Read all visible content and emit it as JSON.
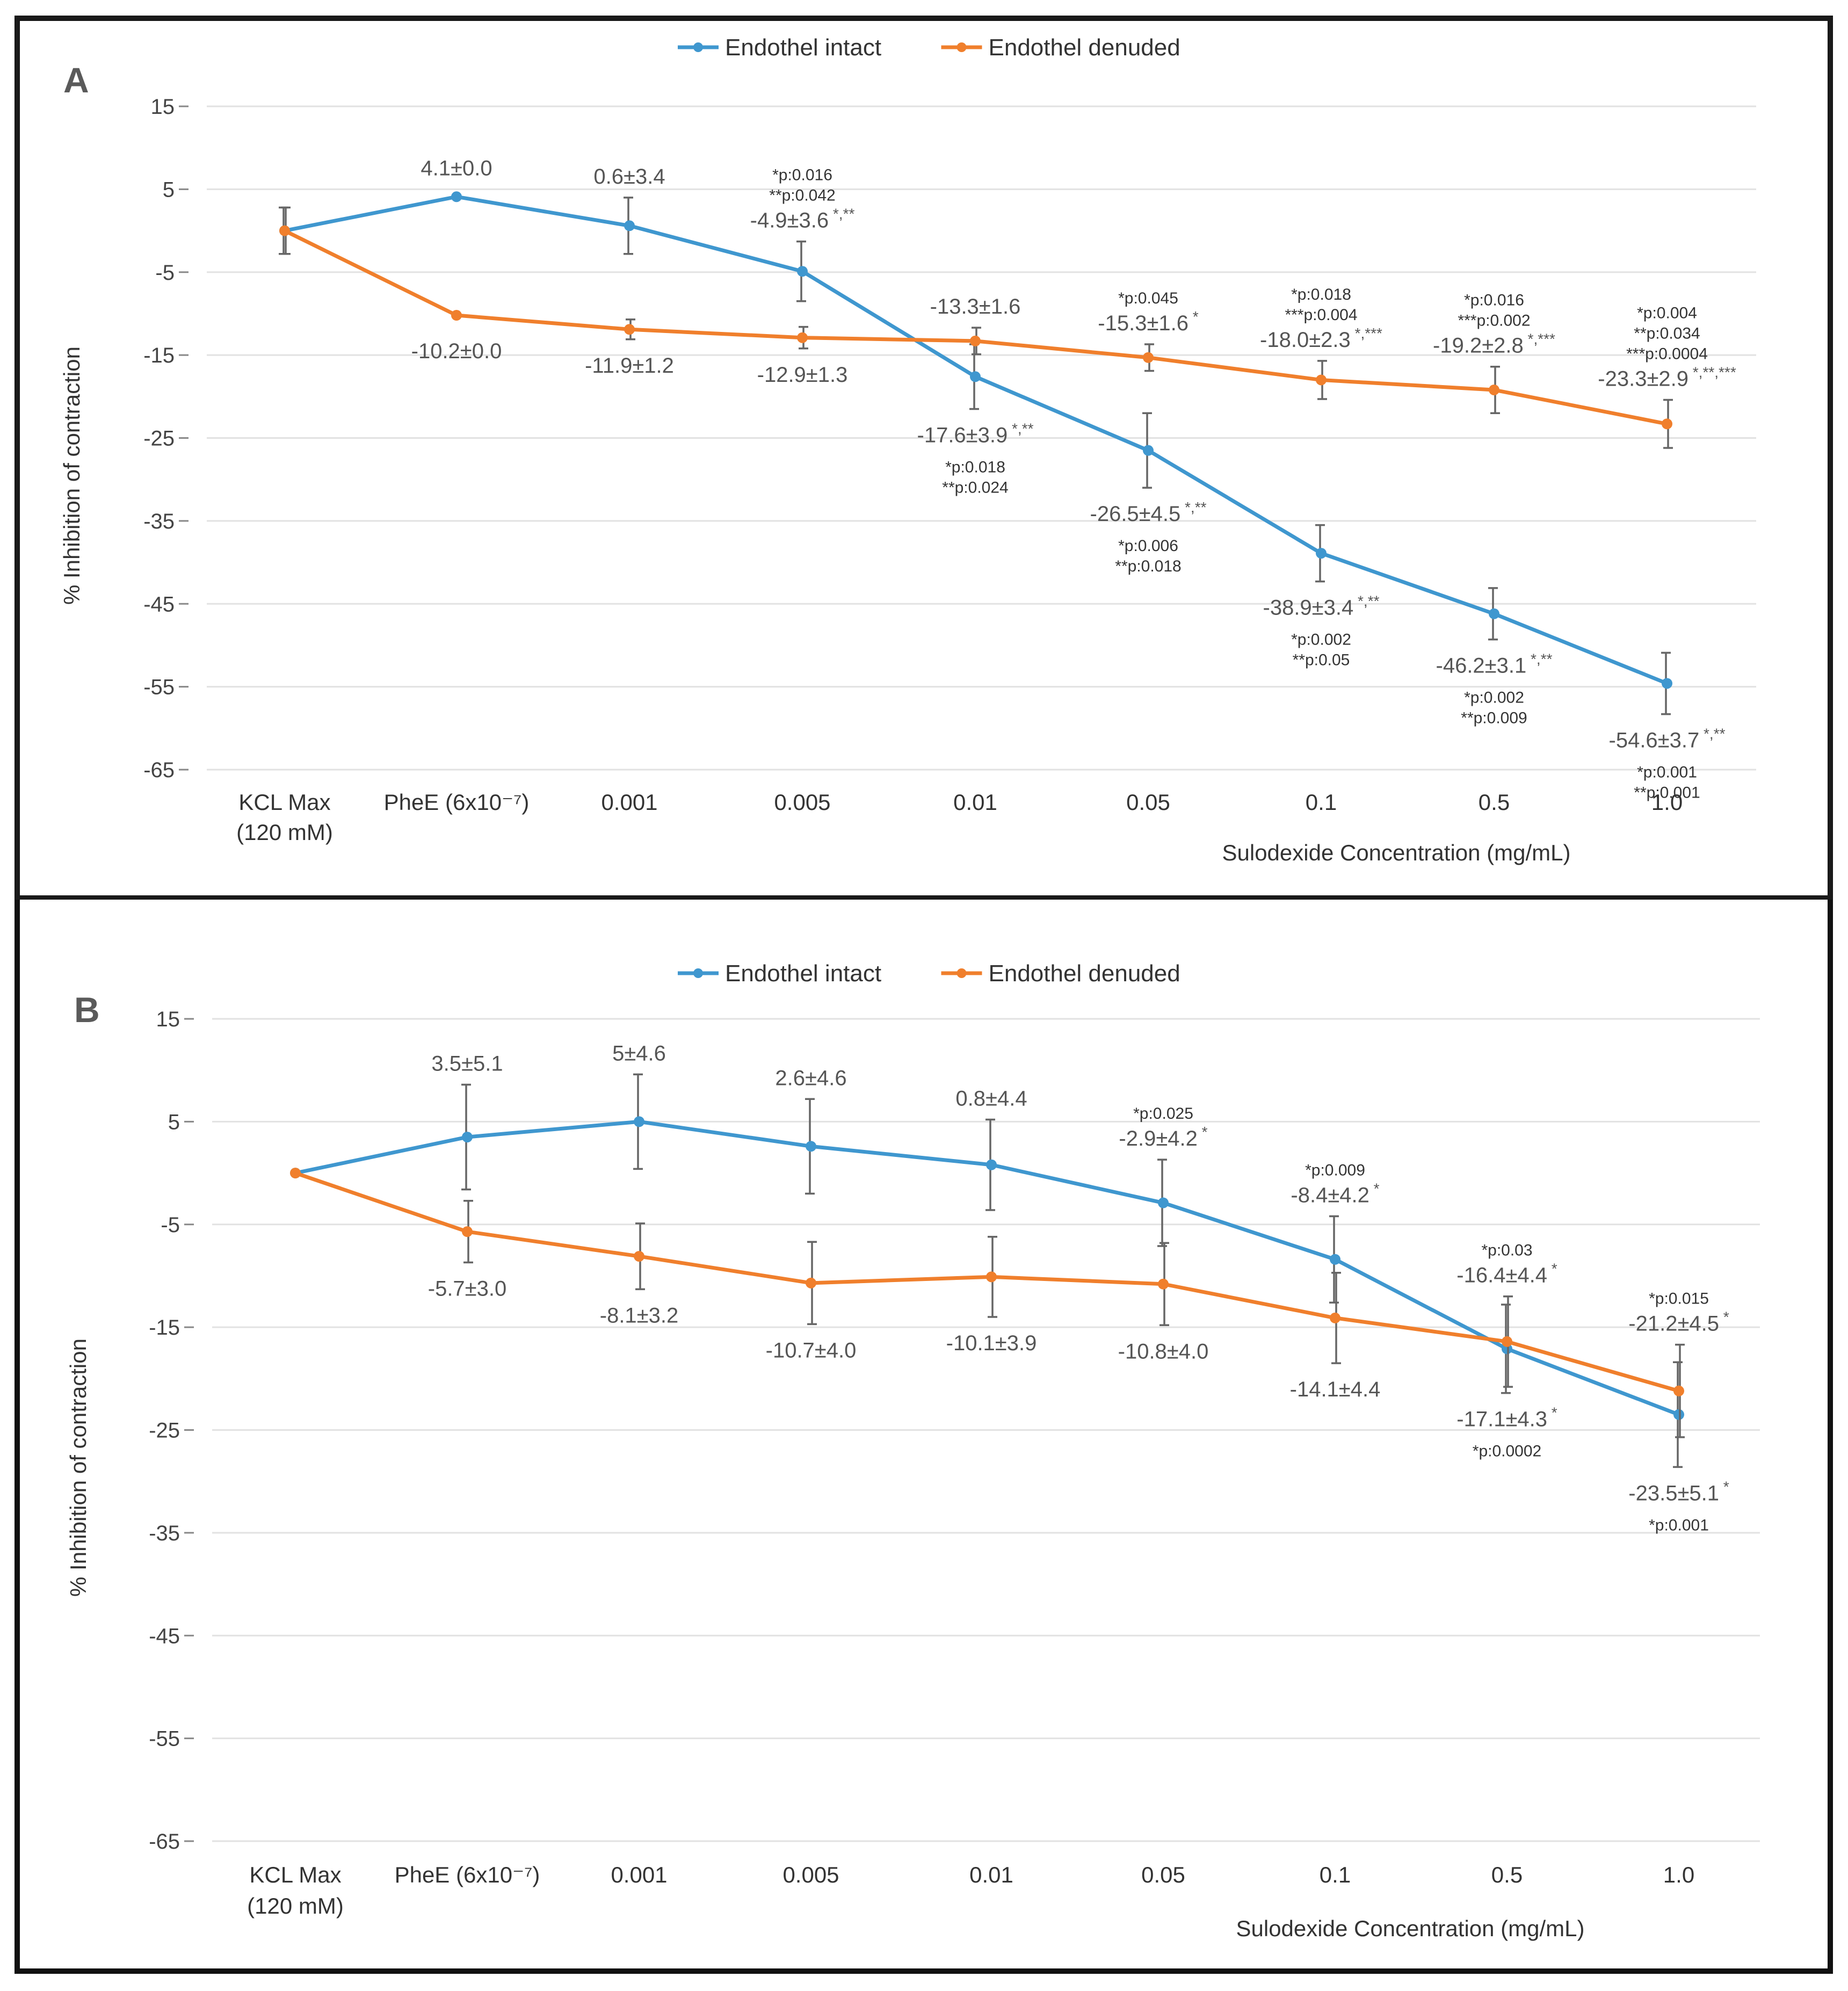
{
  "chart_data": [
    {
      "type": "line",
      "panel": "A",
      "legend": [
        "Endothel intact",
        "Endothel denuded"
      ],
      "legend_position": "top-center",
      "xlabel": "Sulodexide Concentration (mg/mL)",
      "ylabel": "% Inhibition of contraction",
      "yticks": [
        15,
        5,
        -5,
        -15,
        -25,
        -35,
        -45,
        -55,
        -65
      ],
      "ylim": [
        -65,
        15
      ],
      "categories": [
        [
          "KCL Max",
          "(120 mM)"
        ],
        [
          "PheE (6x10⁻⁷)"
        ],
        [
          "0.001"
        ],
        [
          "0.005"
        ],
        [
          "0.01"
        ],
        [
          "0.05"
        ],
        [
          "0.1"
        ],
        [
          "0.5"
        ],
        [
          "1.0"
        ]
      ],
      "series": [
        {
          "name": "Endothel intact",
          "color": "#3f97cf",
          "values": [
            0,
            4.1,
            0.6,
            -4.9,
            -17.6,
            -26.5,
            -38.9,
            -46.2,
            -54.6
          ],
          "errors": [
            2.8,
            0,
            3.4,
            3.6,
            3.9,
            4.5,
            3.4,
            3.1,
            3.7
          ],
          "labels": [
            null,
            "4.1±0.0",
            "0.6±3.4",
            "-4.9±3.6",
            "-17.6±3.9",
            "-26.5±4.5",
            "-38.9±3.4",
            "-46.2±3.1",
            "-54.6±3.7"
          ],
          "stars": [
            null,
            null,
            null,
            "*,**",
            "*,**",
            "*,**",
            "*,**",
            "*,**",
            "*,**"
          ],
          "pvals": [
            null,
            null,
            null,
            [
              "*p:0.016",
              "**p:0.042"
            ],
            [
              "*p:0.018",
              "**p:0.024"
            ],
            [
              "*p:0.006",
              "**p:0.018"
            ],
            [
              "*p:0.002",
              "**p:0.05"
            ],
            [
              "*p:0.002",
              "**p:0.009"
            ],
            [
              "*p:0.001",
              "**p:0.001"
            ]
          ]
        },
        {
          "name": "Endothel denuded",
          "color": "#f07f2c",
          "values": [
            0,
            -10.2,
            -11.9,
            -12.9,
            -13.3,
            -15.3,
            -18.0,
            -19.2,
            -23.3
          ],
          "errors": [
            2.8,
            0,
            1.2,
            1.3,
            1.6,
            1.6,
            2.3,
            2.8,
            2.9
          ],
          "labels": [
            null,
            "-10.2±0.0",
            "-11.9±1.2",
            "-12.9±1.3",
            "-13.3±1.6",
            "-15.3±1.6",
            "-18.0±2.3",
            "-19.2±2.8",
            "-23.3±2.9"
          ],
          "stars": [
            null,
            null,
            null,
            null,
            null,
            "*",
            "*,***",
            "*,***",
            "*,**,***"
          ],
          "pvals": [
            null,
            null,
            null,
            null,
            null,
            [
              "*p:0.045"
            ],
            [
              "*p:0.018",
              "***p:0.004"
            ],
            [
              "*p:0.016",
              "***p:0.002"
            ],
            [
              "*p:0.004",
              "**p:0.034",
              "***p:0.0004"
            ]
          ]
        }
      ]
    },
    {
      "type": "line",
      "panel": "B",
      "legend": [
        "Endothel intact",
        "Endothel denuded"
      ],
      "legend_position": "top-center",
      "xlabel": "Sulodexide Concentration (mg/mL)",
      "ylabel": "% Inhibition of contraction",
      "yticks": [
        15,
        5,
        -5,
        -15,
        -25,
        -35,
        -45,
        -55,
        -65
      ],
      "ylim": [
        -65,
        15
      ],
      "categories": [
        [
          "KCL Max",
          "(120 mM)"
        ],
        [
          "PheE (6x10⁻⁷)"
        ],
        [
          "0.001"
        ],
        [
          "0.005"
        ],
        [
          "0.01"
        ],
        [
          "0.05"
        ],
        [
          "0.1"
        ],
        [
          "0.5"
        ],
        [
          "1.0"
        ]
      ],
      "series": [
        {
          "name": "Endothel intact",
          "color": "#3f97cf",
          "values": [
            0,
            3.5,
            5,
            2.6,
            0.8,
            -2.9,
            -8.4,
            -17.1,
            -23.5
          ],
          "errors": [
            0,
            5.1,
            4.6,
            4.6,
            4.4,
            4.2,
            4.2,
            4.3,
            5.1
          ],
          "labels": [
            null,
            "3.5±5.1",
            "5±4.6",
            "2.6±4.6",
            "0.8±4.4",
            "-2.9±4.2",
            "-8.4±4.2",
            "-17.1±4.3",
            "-23.5±5.1"
          ],
          "stars": [
            null,
            null,
            null,
            null,
            null,
            "*",
            "*",
            "*",
            "*"
          ],
          "pvals": [
            null,
            null,
            null,
            null,
            null,
            [
              "*p:0.025"
            ],
            [
              "*p:0.009"
            ],
            [
              "*p:0.0002"
            ],
            [
              "*p:0.001"
            ]
          ]
        },
        {
          "name": "Endothel denuded",
          "color": "#f07f2c",
          "values": [
            0,
            -5.7,
            -8.1,
            -10.7,
            -10.1,
            -10.8,
            -14.1,
            -16.4,
            -21.2
          ],
          "errors": [
            0,
            3.0,
            3.2,
            4.0,
            3.9,
            4.0,
            4.4,
            4.4,
            4.5
          ],
          "labels": [
            null,
            "-5.7±3.0",
            "-8.1±3.2",
            "-10.7±4.0",
            "-10.1±3.9",
            "-10.8±4.0",
            "-14.1±4.4",
            "-16.4±4.4",
            "-21.2±4.5"
          ],
          "stars": [
            null,
            null,
            null,
            null,
            null,
            null,
            null,
            "*",
            "*"
          ],
          "pvals": [
            null,
            null,
            null,
            null,
            null,
            null,
            null,
            [
              "*p:0.03"
            ],
            [
              "*p:0.015"
            ]
          ]
        }
      ]
    }
  ]
}
